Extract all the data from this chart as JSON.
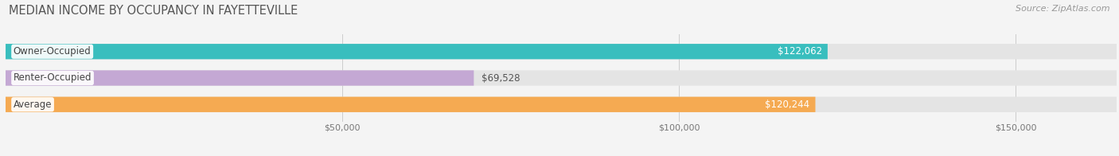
{
  "title": "MEDIAN INCOME BY OCCUPANCY IN FAYETTEVILLE",
  "source": "Source: ZipAtlas.com",
  "categories": [
    "Owner-Occupied",
    "Renter-Occupied",
    "Average"
  ],
  "values": [
    122062,
    69528,
    120244
  ],
  "bar_colors": [
    "#39bebe",
    "#c4a8d4",
    "#f5aa52"
  ],
  "value_labels": [
    "$122,062",
    "$69,528",
    "$120,244"
  ],
  "value_label_colors": [
    "#ffffff",
    "#555555",
    "#ffffff"
  ],
  "value_label_inside": [
    true,
    false,
    true
  ],
  "xlim_max": 165000,
  "xticks": [
    50000,
    100000,
    150000
  ],
  "xtick_labels": [
    "$50,000",
    "$100,000",
    "$150,000"
  ],
  "bg_color": "#f4f4f4",
  "bar_bg_color": "#e4e4e4",
  "bar_height": 0.58,
  "title_fontsize": 10.5,
  "source_fontsize": 8,
  "cat_label_fontsize": 8.5,
  "value_fontsize": 8.5,
  "tick_fontsize": 8
}
